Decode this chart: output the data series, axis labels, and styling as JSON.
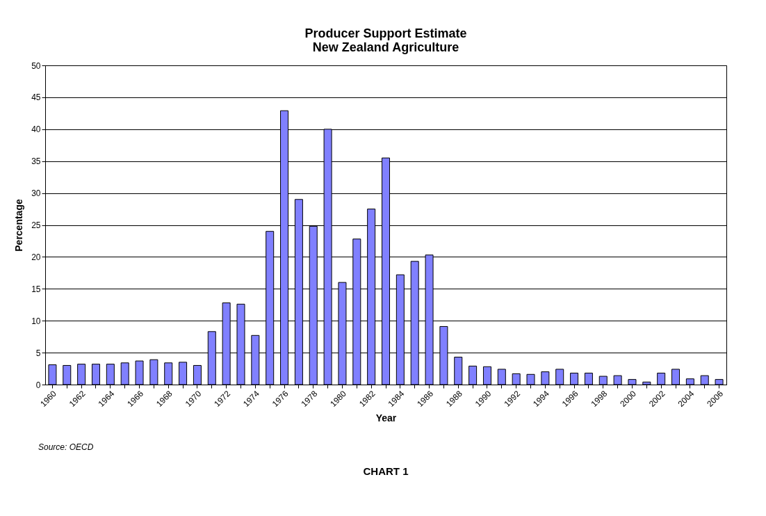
{
  "chart_data": {
    "type": "bar",
    "title": "Producer Support Estimate\nNew Zealand Agriculture",
    "xlabel": "Year",
    "ylabel": "Percentage",
    "categories": [
      "1960",
      null,
      "1962",
      null,
      "1964",
      null,
      "1966",
      null,
      "1968",
      null,
      "1970",
      null,
      "1972",
      null,
      "1974",
      null,
      "1976",
      null,
      "1978",
      null,
      "1980",
      null,
      "1982",
      null,
      "1984",
      null,
      "1986",
      null,
      "1988",
      null,
      "1990",
      null,
      "1992",
      null,
      "1994",
      null,
      "1996",
      null,
      "1998",
      null,
      "2000",
      null,
      "2002",
      null,
      "2004",
      null,
      "2006"
    ],
    "values": [
      3.1,
      3.0,
      3.2,
      3.2,
      3.2,
      3.4,
      3.7,
      3.9,
      3.4,
      3.5,
      3.0,
      8.3,
      12.8,
      12.6,
      7.7,
      24.0,
      42.9,
      29.0,
      24.8,
      40.0,
      16.0,
      22.8,
      27.5,
      35.5,
      17.2,
      19.3,
      20.3,
      9.1,
      4.3,
      2.9,
      2.8,
      2.4,
      1.7,
      1.6,
      2.0,
      2.4,
      1.8,
      1.8,
      1.3,
      1.4,
      0.8,
      0.4,
      1.8,
      2.4,
      0.9,
      1.4,
      0.8
    ],
    "color": "#8080ff",
    "ylim": [
      0,
      50
    ],
    "yticks": [
      0,
      5,
      10,
      15,
      20,
      25,
      30,
      35,
      40,
      45,
      50
    ],
    "grid": "y",
    "annotations": [
      "Source: OECD",
      "CHART 1"
    ]
  }
}
